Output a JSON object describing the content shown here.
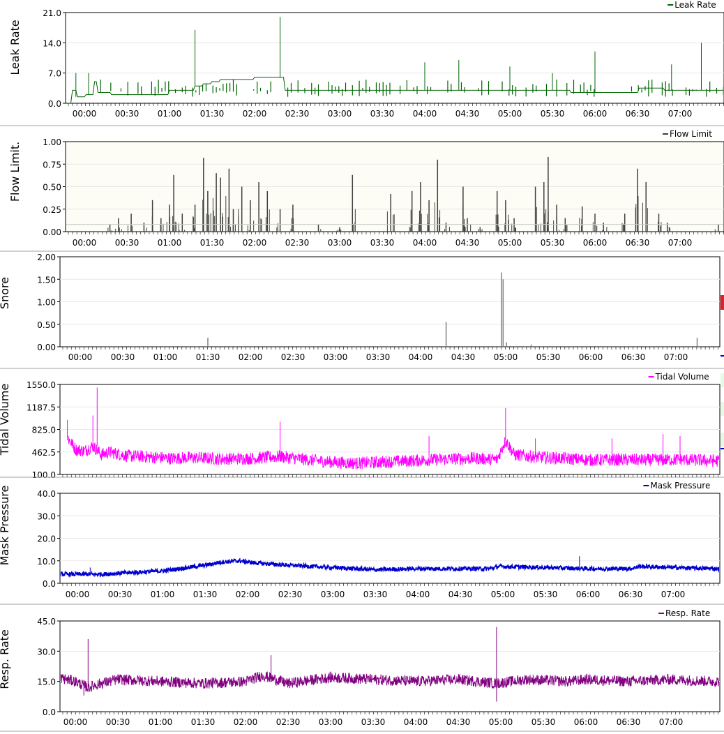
{
  "x_ticks": [
    "00:00",
    "00:30",
    "01:00",
    "01:30",
    "02:00",
    "02:30",
    "03:00",
    "03:30",
    "04:00",
    "04:30",
    "05:00",
    "05:30",
    "06:00",
    "06:30",
    "07:00"
  ],
  "chart_data": [
    {
      "type": "line",
      "ylabel": "Leak Rate",
      "legend": "Leak Rate",
      "legend_position": "top-right",
      "color": "#006400",
      "background": "#ffffff",
      "ylim": [
        0,
        21
      ],
      "y_ticks": [
        "0.0",
        "7.0",
        "14.0",
        "21.0"
      ],
      "grid": true,
      "x_unit": "hours",
      "x_range": [
        -0.2,
        7.75
      ],
      "series": [
        {
          "name": "Leak Rate",
          "points": [
            [
              -0.2,
              0
            ],
            [
              -0.15,
              3
            ],
            [
              -0.1,
              1.5
            ],
            [
              0,
              2
            ],
            [
              0.1,
              5
            ],
            [
              0.15,
              2.5
            ],
            [
              0.3,
              2
            ],
            [
              0.5,
              2
            ],
            [
              0.8,
              2
            ],
            [
              1.0,
              3
            ],
            [
              1.2,
              3
            ],
            [
              1.3,
              4
            ],
            [
              1.4,
              4.5
            ],
            [
              1.5,
              5
            ],
            [
              1.6,
              5.5
            ],
            [
              1.8,
              5.5
            ],
            [
              2.0,
              6
            ],
            [
              2.2,
              6
            ],
            [
              2.35,
              3
            ],
            [
              2.5,
              3
            ],
            [
              3.0,
              3
            ],
            [
              3.5,
              3
            ],
            [
              3.8,
              3
            ],
            [
              4.0,
              3
            ],
            [
              4.3,
              3
            ],
            [
              4.5,
              3
            ],
            [
              4.8,
              3
            ],
            [
              5.0,
              3
            ],
            [
              5.3,
              3
            ],
            [
              5.5,
              3
            ],
            [
              5.7,
              2.5
            ],
            [
              6.0,
              2.5
            ],
            [
              6.3,
              2.5
            ],
            [
              6.5,
              3.5
            ],
            [
              6.7,
              3.5
            ],
            [
              6.8,
              3
            ],
            [
              7.0,
              3
            ],
            [
              7.2,
              3
            ],
            [
              7.4,
              3
            ],
            [
              7.5,
              3
            ],
            [
              7.6,
              2.5
            ],
            [
              7.75,
              2.5
            ]
          ]
        }
      ],
      "spikes": [
        [
          -0.1,
          7
        ],
        [
          0.05,
          7
        ],
        [
          1.3,
          17
        ],
        [
          2.3,
          20
        ],
        [
          4.4,
          10
        ],
        [
          5.5,
          7
        ],
        [
          6.0,
          12
        ],
        [
          6.9,
          9
        ],
        [
          7.25,
          14
        ],
        [
          7.55,
          14.5
        ],
        [
          4.0,
          9.5
        ],
        [
          5.0,
          8.5
        ]
      ]
    },
    {
      "type": "bar",
      "ylabel": "Flow Limit.",
      "legend": "Flow Limit",
      "legend_position": "top-right",
      "color": "#404040",
      "background": "#fdfdf5",
      "ylim": [
        0,
        1
      ],
      "y_ticks": [
        "0.00",
        "0.25",
        "0.50",
        "0.75",
        "1.00"
      ],
      "grid": true,
      "x_unit": "hours",
      "x_range": [
        -0.2,
        7.75
      ],
      "series": [
        {
          "name": "Flow Limit",
          "points": [
            [
              0.3,
              0.08
            ],
            [
              0.4,
              0.15
            ],
            [
              0.55,
              0.2
            ],
            [
              0.7,
              0.1
            ],
            [
              0.8,
              0.35
            ],
            [
              0.9,
              0.15
            ],
            [
              1.0,
              0.3
            ],
            [
              1.05,
              0.63
            ],
            [
              1.15,
              0.2
            ],
            [
              1.3,
              0.3
            ],
            [
              1.4,
              0.82
            ],
            [
              1.45,
              0.45
            ],
            [
              1.55,
              0.65
            ],
            [
              1.6,
              0.6
            ],
            [
              1.7,
              0.7
            ],
            [
              1.75,
              0.25
            ],
            [
              1.85,
              0.5
            ],
            [
              1.95,
              0.35
            ],
            [
              2.05,
              0.55
            ],
            [
              2.15,
              0.45
            ],
            [
              2.3,
              0.25
            ],
            [
              2.45,
              0.3
            ],
            [
              2.75,
              0.08
            ],
            [
              3.0,
              0.05
            ],
            [
              3.15,
              0.63
            ],
            [
              3.6,
              0.42
            ],
            [
              3.85,
              0.45
            ],
            [
              3.95,
              0.55
            ],
            [
              4.05,
              0.35
            ],
            [
              4.15,
              0.8
            ],
            [
              4.25,
              0.1
            ],
            [
              4.45,
              0.5
            ],
            [
              4.5,
              0.15
            ],
            [
              4.65,
              0.05
            ],
            [
              4.85,
              0.45
            ],
            [
              4.95,
              0.35
            ],
            [
              5.05,
              0.15
            ],
            [
              5.3,
              0.5
            ],
            [
              5.4,
              0.55
            ],
            [
              5.45,
              0.83
            ],
            [
              5.55,
              0.3
            ],
            [
              5.65,
              0.15
            ],
            [
              5.85,
              0.28
            ],
            [
              6.0,
              0.2
            ],
            [
              6.1,
              0.1
            ],
            [
              6.35,
              0.2
            ],
            [
              6.5,
              0.7
            ],
            [
              6.6,
              0.55
            ],
            [
              6.75,
              0.2
            ],
            [
              6.85,
              0.1
            ],
            [
              7.45,
              0.08
            ],
            [
              7.6,
              0.25
            ],
            [
              7.75,
              0.35
            ]
          ]
        }
      ]
    },
    {
      "type": "bar",
      "ylabel": "Snore",
      "legend": "",
      "color": "#808080",
      "background": "#ffffff",
      "ylim": [
        0,
        2
      ],
      "y_ticks": [
        "0.00",
        "0.50",
        "1.00",
        "1.50",
        "2.00"
      ],
      "grid": true,
      "x_unit": "hours",
      "x_range": [
        -0.2,
        7.75
      ],
      "series": [
        {
          "name": "",
          "points": [
            [
              1.5,
              0.2
            ],
            [
              4.3,
              0.55
            ],
            [
              4.95,
              1.65
            ],
            [
              4.97,
              1.5
            ],
            [
              5.01,
              0.1
            ],
            [
              5.3,
              0.05
            ],
            [
              7.25,
              0.2
            ]
          ]
        }
      ]
    },
    {
      "type": "line",
      "ylabel": "Tidal Volume",
      "legend": "Tidal Volume",
      "legend_position": "top-right",
      "color": "#ff00ff",
      "background": "#ffffff",
      "ylim": [
        100,
        1550
      ],
      "y_ticks": [
        "100.0",
        "462.5",
        "825.0",
        "1187.5",
        "1550.0"
      ],
      "grid": true,
      "x_unit": "hours",
      "x_range": [
        -0.2,
        7.75
      ],
      "series": [
        {
          "name": "Tidal Volume",
          "points": [
            [
              -0.2,
              700
            ],
            [
              -0.1,
              500
            ],
            [
              0,
              480
            ],
            [
              0.1,
              560
            ],
            [
              0.2,
              420
            ],
            [
              0.3,
              460
            ],
            [
              0.5,
              400
            ],
            [
              0.8,
              380
            ],
            [
              1.0,
              360
            ],
            [
              1.3,
              370
            ],
            [
              1.6,
              350
            ],
            [
              2.0,
              360
            ],
            [
              2.3,
              390
            ],
            [
              2.6,
              340
            ],
            [
              2.9,
              300
            ],
            [
              3.2,
              280
            ],
            [
              3.5,
              300
            ],
            [
              4.0,
              330
            ],
            [
              4.3,
              350
            ],
            [
              4.6,
              360
            ],
            [
              4.85,
              340
            ],
            [
              4.95,
              650
            ],
            [
              5.05,
              420
            ],
            [
              5.3,
              380
            ],
            [
              5.6,
              360
            ],
            [
              6.0,
              330
            ],
            [
              6.3,
              340
            ],
            [
              6.6,
              330
            ],
            [
              7.0,
              340
            ],
            [
              7.4,
              320
            ],
            [
              7.75,
              330
            ]
          ]
        }
      ],
      "spikes": [
        [
          -0.2,
          980
        ],
        [
          0.15,
          1500
        ],
        [
          0.1,
          1050
        ],
        [
          2.3,
          950
        ],
        [
          4.05,
          720
        ],
        [
          4.95,
          1170
        ],
        [
          5.3,
          680
        ],
        [
          6.2,
          680
        ],
        [
          6.8,
          750
        ],
        [
          7.0,
          720
        ]
      ]
    },
    {
      "type": "line",
      "ylabel": "Mask Pressure",
      "legend": "Mask Pressure",
      "legend_position": "top-right",
      "color": "#0000cd",
      "background": "#ffffff",
      "ylim": [
        0,
        40
      ],
      "y_ticks": [
        "0.0",
        "10.0",
        "20.0",
        "30.0",
        "40.0"
      ],
      "grid": true,
      "x_unit": "hours",
      "x_range": [
        -0.2,
        7.75
      ],
      "series": [
        {
          "name": "Mask Pressure",
          "points": [
            [
              -0.2,
              4
            ],
            [
              0.3,
              4
            ],
            [
              0.5,
              4.5
            ],
            [
              1.0,
              5.5
            ],
            [
              1.2,
              6.5
            ],
            [
              1.5,
              8
            ],
            [
              1.7,
              9.5
            ],
            [
              1.9,
              10
            ],
            [
              2.1,
              9
            ],
            [
              2.5,
              8
            ],
            [
              3.0,
              7
            ],
            [
              3.5,
              6
            ],
            [
              4.0,
              6.5
            ],
            [
              4.5,
              6.5
            ],
            [
              4.85,
              6.5
            ],
            [
              4.95,
              7.5
            ],
            [
              5.5,
              7
            ],
            [
              6.0,
              6.5
            ],
            [
              6.5,
              6.5
            ],
            [
              6.6,
              7.5
            ],
            [
              7.0,
              7
            ],
            [
              7.5,
              6.5
            ],
            [
              7.75,
              6
            ]
          ]
        }
      ],
      "spikes": [
        [
          0.15,
          7
        ],
        [
          5.9,
          12
        ]
      ]
    },
    {
      "type": "line",
      "ylabel": "Resp. Rate",
      "legend": "Resp. Rate",
      "legend_position": "top-right",
      "color": "#800080",
      "background": "#ffffff",
      "ylim": [
        0,
        45
      ],
      "y_ticks": [
        "0.0",
        "15.0",
        "30.0",
        "45.0"
      ],
      "grid": true,
      "x_unit": "hours",
      "x_range": [
        -0.2,
        7.75
      ],
      "series": [
        {
          "name": "Resp. Rate",
          "points": [
            [
              -0.2,
              17
            ],
            [
              0,
              15
            ],
            [
              0.15,
              12
            ],
            [
              0.3,
              14
            ],
            [
              0.5,
              16
            ],
            [
              1.0,
              15
            ],
            [
              1.5,
              14
            ],
            [
              2.0,
              15
            ],
            [
              2.2,
              18
            ],
            [
              2.5,
              14
            ],
            [
              3.0,
              17
            ],
            [
              3.5,
              16
            ],
            [
              4.0,
              15
            ],
            [
              4.5,
              16
            ],
            [
              4.95,
              14
            ],
            [
              5.3,
              16
            ],
            [
              5.8,
              15
            ],
            [
              6.0,
              16
            ],
            [
              6.5,
              15
            ],
            [
              7.0,
              16
            ],
            [
              7.5,
              15
            ],
            [
              7.75,
              15
            ]
          ]
        }
      ],
      "spikes": [
        [
          0.15,
          36
        ],
        [
          2.3,
          28
        ],
        [
          4.95,
          42
        ],
        [
          0.1,
          8
        ],
        [
          4.95,
          5
        ]
      ]
    }
  ]
}
